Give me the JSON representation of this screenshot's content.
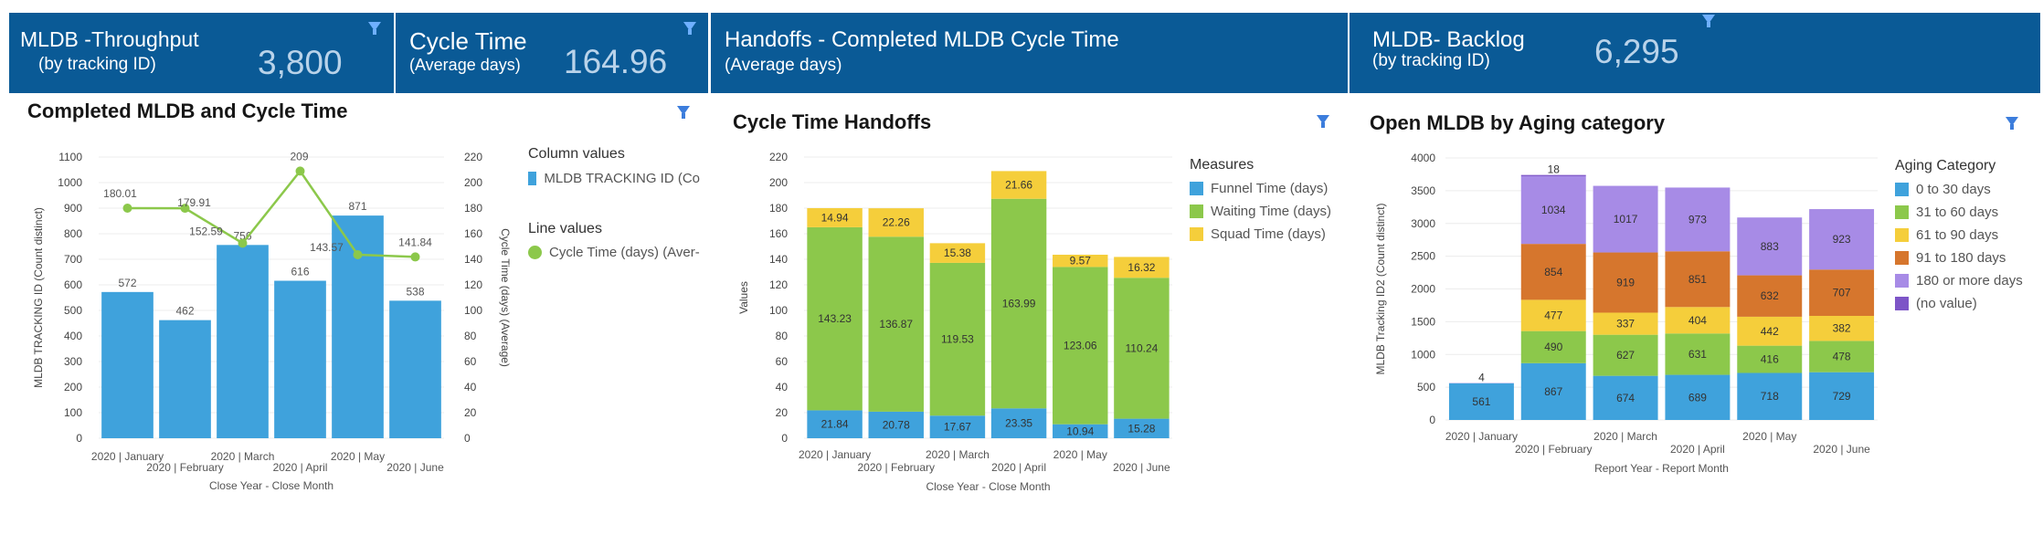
{
  "kpis": [
    {
      "title": "MLDB -Throughput",
      "subtitle": "(by tracking ID)",
      "value": "3,800"
    },
    {
      "title": "Cycle Time",
      "subtitle": "(Average days)",
      "value": "164.96"
    },
    {
      "title": "Handoffs - Completed MLDB Cycle Time",
      "subtitle": "(Average days)"
    },
    {
      "title": "MLDB- Backlog",
      "subtitle": "(by tracking ID)",
      "value": "6,295"
    }
  ],
  "colors": {
    "header_bg": "#0a5a96",
    "kpi_value": "#b9d3ea",
    "blue": "#3fa2dc",
    "green": "#8cc84b",
    "yellow": "#f5ce3b",
    "orange": "#d6762d",
    "lavender": "#a78be6",
    "purple": "#7d55c7",
    "line": "#8cc84b"
  },
  "charts": {
    "completed": {
      "title": "Completed MLDB and Cycle Time"
    },
    "handoffs": {
      "title": "Cycle Time Handoffs"
    },
    "aging": {
      "title": "Open MLDB by Aging category"
    }
  },
  "chart_data": [
    {
      "type": "bar",
      "title": "Completed MLDB and Cycle Time",
      "categories": [
        "2020 | January",
        "2020 | February",
        "2020 | March",
        "2020 | April",
        "2020 | May",
        "2020 | June"
      ],
      "series": [
        {
          "name": "MLDB TRACKING ID (Co",
          "type": "bar",
          "axis": "left",
          "values": [
            572,
            462,
            756,
            616,
            871,
            538
          ]
        },
        {
          "name": "Cycle Time (days) (Aver-",
          "type": "line",
          "axis": "right",
          "values": [
            180.01,
            179.91,
            152.59,
            209,
            143.57,
            141.84
          ]
        }
      ],
      "xlabel": "Close Year - Close Month",
      "ylabel": "MLDB TRACKING ID (Count distinct)",
      "y2label": "Cycle Time (days) (Average)",
      "ylim": [
        0,
        1100
      ],
      "y2lim": [
        0,
        220
      ],
      "yticks": [
        0,
        100,
        200,
        300,
        400,
        500,
        600,
        700,
        800,
        900,
        1000,
        1100
      ],
      "y2ticks": [
        0,
        20,
        40,
        60,
        80,
        100,
        120,
        140,
        160,
        180,
        200,
        220
      ],
      "legend": {
        "column_title": "Column values",
        "line_title": "Line values",
        "position": "right"
      },
      "grid": true
    },
    {
      "type": "bar",
      "stacked": true,
      "title": "Cycle Time Handoffs",
      "categories": [
        "2020 | January",
        "2020 | February",
        "2020 | March",
        "2020 | April",
        "2020 | May",
        "2020 | June"
      ],
      "series": [
        {
          "name": "Funnel Time (days)",
          "values": [
            21.84,
            20.78,
            17.67,
            23.35,
            10.94,
            15.28
          ]
        },
        {
          "name": "Waiting Time (days)",
          "values": [
            143.23,
            136.87,
            119.53,
            163.99,
            123.06,
            110.24
          ]
        },
        {
          "name": "Squad Time (days)",
          "values": [
            14.94,
            22.26,
            15.38,
            21.66,
            9.57,
            16.32
          ]
        }
      ],
      "xlabel": "Close Year - Close Month",
      "ylabel": "Values",
      "ylim": [
        0,
        220
      ],
      "yticks": [
        0,
        20,
        40,
        60,
        80,
        100,
        120,
        140,
        160,
        180,
        200,
        220
      ],
      "legend": {
        "title": "Measures",
        "position": "right"
      },
      "grid": true
    },
    {
      "type": "bar",
      "stacked": true,
      "title": "Open MLDB by Aging category",
      "categories": [
        "2020 | January",
        "2020 | February",
        "2020 | March",
        "2020 | April",
        "2020 | May",
        "2020 | June"
      ],
      "series": [
        {
          "name": "0 to 30 days",
          "values": [
            561,
            867,
            674,
            689,
            718,
            729
          ]
        },
        {
          "name": "31 to 60 days",
          "values": [
            0,
            490,
            627,
            631,
            416,
            478
          ]
        },
        {
          "name": "61 to 90 days",
          "values": [
            0,
            477,
            337,
            404,
            442,
            382
          ]
        },
        {
          "name": "91 to 180 days",
          "values": [
            0,
            854,
            919,
            851,
            632,
            707
          ]
        },
        {
          "name": "180 or more days",
          "values": [
            4,
            1034,
            1017,
            973,
            883,
            923
          ]
        },
        {
          "name": "(no value)",
          "values": [
            0,
            18,
            0,
            0,
            0,
            0
          ]
        }
      ],
      "data_labels": [
        [
          "561",
          "",
          "",
          "",
          "4",
          ""
        ],
        [
          "867",
          "490",
          "477",
          "854",
          "1034",
          "18"
        ],
        [
          "674",
          "627",
          "337",
          "919",
          "1017",
          ""
        ],
        [
          "689",
          "631",
          "404",
          "851",
          "973",
          ""
        ],
        [
          "718",
          "416",
          "442",
          "632",
          "883",
          ""
        ],
        [
          "729",
          "478",
          "382",
          "707",
          "923",
          ""
        ]
      ],
      "xlabel": "Report Year - Report Month",
      "ylabel": "MLDB Tracking ID2 (Count distinct)",
      "ylim": [
        0,
        4000
      ],
      "yticks": [
        0,
        500,
        1000,
        1500,
        2000,
        2500,
        3000,
        3500,
        4000
      ],
      "legend": {
        "title": "Aging Category",
        "position": "right"
      },
      "grid": true
    }
  ]
}
